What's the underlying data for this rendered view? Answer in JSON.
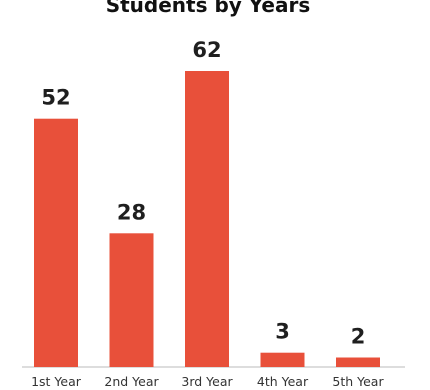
{
  "chart_data": {
    "type": "bar",
    "title": "Students by Years",
    "categories": [
      "1st Year",
      "2nd Year",
      "3rd Year",
      "4th Year",
      "5th Year"
    ],
    "values": [
      52,
      28,
      62,
      3,
      2
    ],
    "data_labels": [
      "52",
      "28",
      "62",
      "3",
      "2"
    ],
    "xlabel": "",
    "ylabel": "",
    "ylim": [
      0,
      62
    ],
    "grid": false,
    "legend": "none",
    "colors": {
      "bar": "#e8503a",
      "axis": "#bbbbbb",
      "text": "#1f1f1f"
    }
  }
}
